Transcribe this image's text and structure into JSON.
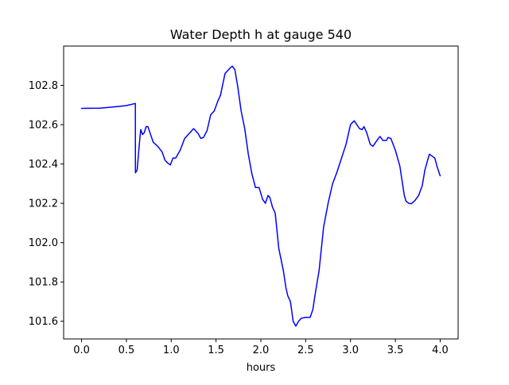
{
  "chart_data": {
    "type": "line",
    "title": "Water Depth h at gauge 540",
    "xlabel": "hours",
    "ylabel": "",
    "xlim": [
      -0.2,
      4.2
    ],
    "ylim": [
      101.51,
      103.0
    ],
    "xticks": [
      0.0,
      0.5,
      1.0,
      1.5,
      2.0,
      2.5,
      3.0,
      3.5,
      4.0
    ],
    "xtick_labels": [
      "0.0",
      "0.5",
      "1.0",
      "1.5",
      "2.0",
      "2.5",
      "3.0",
      "3.5",
      "4.0"
    ],
    "yticks": [
      101.6,
      101.8,
      102.0,
      102.2,
      102.4,
      102.6,
      102.8
    ],
    "ytick_labels": [
      "101.6",
      "101.8",
      "102.0",
      "102.2",
      "102.4",
      "102.6",
      "102.8"
    ],
    "grid": false,
    "legend": "none",
    "series": [
      {
        "color": "#0000ff",
        "points": [
          [
            0.0,
            102.683
          ],
          [
            0.2,
            102.684
          ],
          [
            0.4,
            102.692
          ],
          [
            0.5,
            102.697
          ],
          [
            0.6,
            102.708
          ],
          [
            0.601,
            102.355
          ],
          [
            0.62,
            102.37
          ],
          [
            0.65,
            102.53
          ],
          [
            0.66,
            102.575
          ],
          [
            0.68,
            102.55
          ],
          [
            0.7,
            102.56
          ],
          [
            0.72,
            102.59
          ],
          [
            0.74,
            102.59
          ],
          [
            0.77,
            102.55
          ],
          [
            0.8,
            102.51
          ],
          [
            0.85,
            102.49
          ],
          [
            0.9,
            102.46
          ],
          [
            0.93,
            102.42
          ],
          [
            0.96,
            102.405
          ],
          [
            0.99,
            102.395
          ],
          [
            1.02,
            102.43
          ],
          [
            1.05,
            102.43
          ],
          [
            1.1,
            102.47
          ],
          [
            1.15,
            102.53
          ],
          [
            1.2,
            102.555
          ],
          [
            1.25,
            102.58
          ],
          [
            1.3,
            102.555
          ],
          [
            1.33,
            102.53
          ],
          [
            1.36,
            102.535
          ],
          [
            1.4,
            102.57
          ],
          [
            1.44,
            102.65
          ],
          [
            1.48,
            102.67
          ],
          [
            1.52,
            102.72
          ],
          [
            1.55,
            102.75
          ],
          [
            1.6,
            102.86
          ],
          [
            1.65,
            102.885
          ],
          [
            1.68,
            102.898
          ],
          [
            1.71,
            102.88
          ],
          [
            1.74,
            102.8
          ],
          [
            1.78,
            102.67
          ],
          [
            1.82,
            102.58
          ],
          [
            1.86,
            102.45
          ],
          [
            1.9,
            102.35
          ],
          [
            1.94,
            102.28
          ],
          [
            1.98,
            102.28
          ],
          [
            2.02,
            102.22
          ],
          [
            2.05,
            102.2
          ],
          [
            2.08,
            102.24
          ],
          [
            2.1,
            102.23
          ],
          [
            2.13,
            102.18
          ],
          [
            2.16,
            102.15
          ],
          [
            2.2,
            101.97
          ],
          [
            2.25,
            101.86
          ],
          [
            2.28,
            101.77
          ],
          [
            2.3,
            101.73
          ],
          [
            2.33,
            101.7
          ],
          [
            2.36,
            101.6
          ],
          [
            2.39,
            101.575
          ],
          [
            2.42,
            101.6
          ],
          [
            2.45,
            101.615
          ],
          [
            2.5,
            101.62
          ],
          [
            2.55,
            101.62
          ],
          [
            2.58,
            101.66
          ],
          [
            2.61,
            101.75
          ],
          [
            2.65,
            101.86
          ],
          [
            2.7,
            102.08
          ],
          [
            2.75,
            102.2
          ],
          [
            2.8,
            102.3
          ],
          [
            2.85,
            102.36
          ],
          [
            2.9,
            102.43
          ],
          [
            2.95,
            102.5
          ],
          [
            3.0,
            102.6
          ],
          [
            3.04,
            102.62
          ],
          [
            3.07,
            102.6
          ],
          [
            3.1,
            102.58
          ],
          [
            3.13,
            102.575
          ],
          [
            3.15,
            102.59
          ],
          [
            3.18,
            102.56
          ],
          [
            3.22,
            102.5
          ],
          [
            3.25,
            102.49
          ],
          [
            3.28,
            102.51
          ],
          [
            3.31,
            102.53
          ],
          [
            3.33,
            102.54
          ],
          [
            3.36,
            102.52
          ],
          [
            3.4,
            102.52
          ],
          [
            3.42,
            102.535
          ],
          [
            3.45,
            102.53
          ],
          [
            3.5,
            102.47
          ],
          [
            3.55,
            102.39
          ],
          [
            3.58,
            102.3
          ],
          [
            3.6,
            102.24
          ],
          [
            3.62,
            102.21
          ],
          [
            3.65,
            102.2
          ],
          [
            3.68,
            102.198
          ],
          [
            3.72,
            102.215
          ],
          [
            3.76,
            102.24
          ],
          [
            3.8,
            102.29
          ],
          [
            3.83,
            102.37
          ],
          [
            3.86,
            102.42
          ],
          [
            3.88,
            102.45
          ],
          [
            3.91,
            102.44
          ],
          [
            3.94,
            102.43
          ],
          [
            3.97,
            102.38
          ],
          [
            4.0,
            102.34
          ]
        ]
      }
    ]
  }
}
